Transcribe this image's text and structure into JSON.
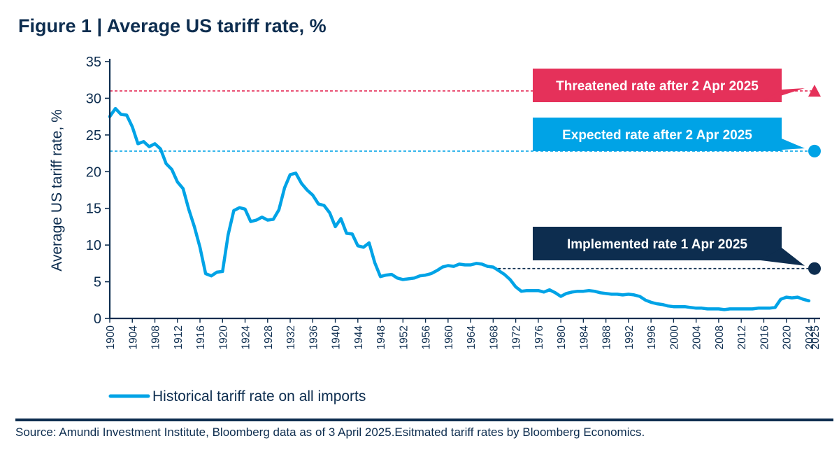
{
  "title": "Figure 1 | Average US tariff rate, %",
  "source": "Source: Amundi Investment Institute, Bloomberg data as of 3 April 2025.Esitmated tariff rates by Bloomberg Economics.",
  "colors": {
    "axis": "#0d2d4f",
    "historical": "#00a3e6",
    "threatened": "#e5315a",
    "expected": "#00a3e6",
    "implemented": "#0d2d4f"
  },
  "chart_data": {
    "type": "line",
    "title": "Figure 1 | Average US tariff rate, %",
    "xlabel": "",
    "ylabel": "Average US tariff rate, %",
    "xlim": [
      1900,
      2025
    ],
    "ylim": [
      0,
      35
    ],
    "yticks": [
      0,
      5,
      10,
      15,
      20,
      25,
      30,
      35
    ],
    "xticks": [
      1900,
      1904,
      1908,
      1912,
      1916,
      1920,
      1924,
      1928,
      1932,
      1936,
      1940,
      1944,
      1948,
      1952,
      1956,
      1960,
      1964,
      1968,
      1972,
      1976,
      1980,
      1984,
      1988,
      1992,
      1996,
      2000,
      2004,
      2008,
      2012,
      2016,
      2020,
      2024,
      2025
    ],
    "grid": false,
    "legend": "bottom-left",
    "series": [
      {
        "name": "Historical tariff rate on all imports",
        "x": [
          1900,
          1901,
          1902,
          1903,
          1904,
          1905,
          1906,
          1907,
          1908,
          1909,
          1910,
          1911,
          1912,
          1913,
          1914,
          1915,
          1916,
          1917,
          1918,
          1919,
          1920,
          1921,
          1922,
          1923,
          1924,
          1925,
          1926,
          1927,
          1928,
          1929,
          1930,
          1931,
          1932,
          1933,
          1934,
          1935,
          1936,
          1937,
          1938,
          1939,
          1940,
          1941,
          1942,
          1943,
          1944,
          1945,
          1946,
          1947,
          1948,
          1949,
          1950,
          1951,
          1952,
          1953,
          1954,
          1955,
          1956,
          1957,
          1958,
          1959,
          1960,
          1961,
          1962,
          1963,
          1964,
          1965,
          1966,
          1967,
          1968,
          1969,
          1970,
          1971,
          1972,
          1973,
          1974,
          1975,
          1976,
          1977,
          1978,
          1979,
          1980,
          1981,
          1982,
          1983,
          1984,
          1985,
          1986,
          1987,
          1988,
          1989,
          1990,
          1991,
          1992,
          1993,
          1994,
          1995,
          1996,
          1997,
          1998,
          1999,
          2000,
          2001,
          2002,
          2003,
          2004,
          2005,
          2006,
          2007,
          2008,
          2009,
          2010,
          2011,
          2012,
          2013,
          2014,
          2015,
          2016,
          2017,
          2018,
          2019,
          2020,
          2021,
          2022,
          2023,
          2024
        ],
        "values": [
          27.5,
          28.6,
          27.8,
          27.7,
          26.1,
          23.8,
          24.1,
          23.4,
          23.8,
          23.1,
          21.1,
          20.3,
          18.6,
          17.7,
          14.9,
          12.5,
          9.7,
          6.1,
          5.8,
          6.3,
          6.4,
          11.4,
          14.7,
          15.1,
          14.9,
          13.2,
          13.4,
          13.8,
          13.4,
          13.5,
          14.8,
          17.8,
          19.6,
          19.8,
          18.4,
          17.5,
          16.8,
          15.6,
          15.4,
          14.4,
          12.5,
          13.6,
          11.6,
          11.5,
          9.9,
          9.7,
          10.3,
          7.6,
          5.7,
          5.9,
          6.0,
          5.5,
          5.3,
          5.4,
          5.5,
          5.8,
          5.9,
          6.1,
          6.5,
          7.0,
          7.2,
          7.1,
          7.4,
          7.3,
          7.3,
          7.5,
          7.4,
          7.1,
          7.0,
          6.5,
          6.0,
          5.3,
          4.3,
          3.7,
          3.8,
          3.8,
          3.8,
          3.6,
          3.9,
          3.5,
          3.0,
          3.4,
          3.6,
          3.7,
          3.7,
          3.8,
          3.7,
          3.5,
          3.4,
          3.3,
          3.3,
          3.2,
          3.3,
          3.2,
          3.0,
          2.5,
          2.2,
          2.0,
          1.9,
          1.7,
          1.6,
          1.6,
          1.6,
          1.5,
          1.4,
          1.4,
          1.3,
          1.3,
          1.3,
          1.2,
          1.3,
          1.3,
          1.3,
          1.3,
          1.3,
          1.4,
          1.4,
          1.4,
          1.5,
          2.6,
          2.9,
          2.8,
          2.9,
          2.6,
          2.4
        ]
      }
    ],
    "annotations": [
      {
        "key": "threatened",
        "label": "Threatened rate after 2 Apr 2025",
        "value": 31.0,
        "year": 2025,
        "marker": "triangle",
        "line_from": 1900
      },
      {
        "key": "expected",
        "label": "Expected rate after 2 Apr 2025",
        "value": 22.8,
        "year": 2025,
        "marker": "circle",
        "line_from": 1900
      },
      {
        "key": "implemented",
        "label": "Implemented rate 1 Apr 2025",
        "value": 6.8,
        "year": 2025,
        "marker": "circle",
        "line_from": 1968
      }
    ]
  }
}
